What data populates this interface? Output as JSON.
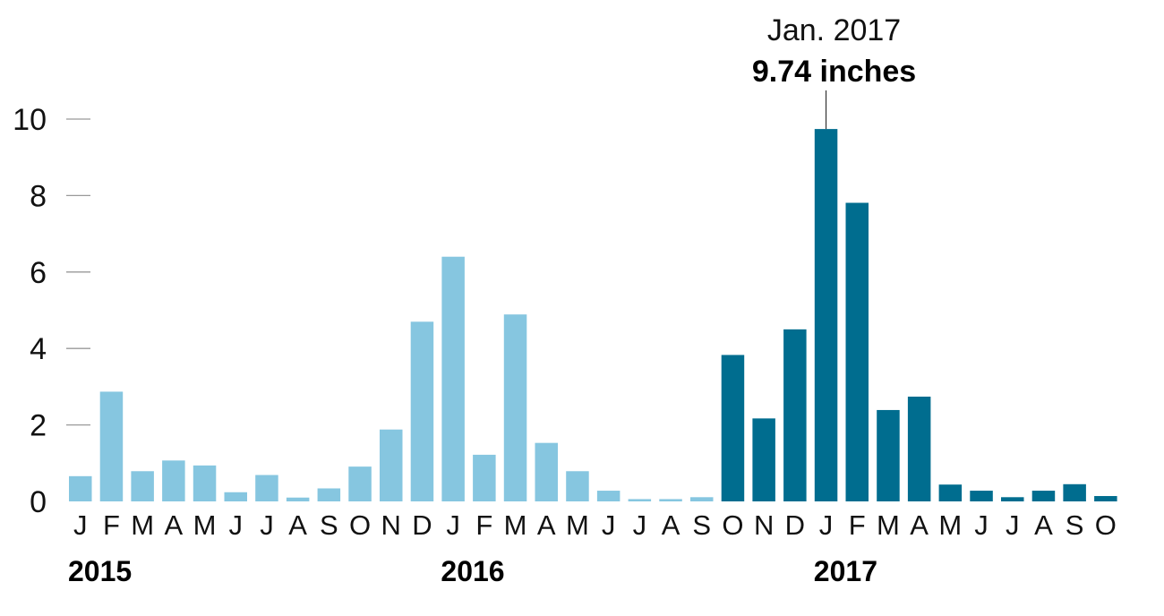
{
  "chart_data": {
    "type": "bar",
    "title": "",
    "xlabel": "",
    "ylabel": "",
    "ylim": [
      0,
      10.5
    ],
    "y_ticks": [
      "0",
      "2",
      "4",
      "6",
      "8",
      "10"
    ],
    "y_tick_values": [
      0,
      2,
      4,
      6,
      8,
      10
    ],
    "grid": false,
    "categories": [
      "J",
      "F",
      "M",
      "A",
      "M",
      "J",
      "J",
      "A",
      "S",
      "O",
      "N",
      "D",
      "J",
      "F",
      "M",
      "A",
      "M",
      "J",
      "J",
      "A",
      "S",
      "O",
      "N",
      "D",
      "J",
      "F",
      "M",
      "A",
      "M",
      "J",
      "J",
      "A",
      "S",
      "O"
    ],
    "values": [
      0.66,
      2.87,
      0.79,
      1.07,
      0.94,
      0.24,
      0.69,
      0.1,
      0.34,
      0.91,
      1.88,
      4.7,
      6.4,
      1.22,
      4.89,
      1.53,
      0.79,
      0.28,
      0.06,
      0.06,
      0.11,
      3.83,
      2.17,
      4.5,
      9.74,
      7.81,
      2.39,
      2.74,
      0.44,
      0.28,
      0.11,
      0.28,
      0.45,
      0.14
    ],
    "bar_colors": [
      "#86c6e0",
      "#86c6e0",
      "#86c6e0",
      "#86c6e0",
      "#86c6e0",
      "#86c6e0",
      "#86c6e0",
      "#86c6e0",
      "#86c6e0",
      "#86c6e0",
      "#86c6e0",
      "#86c6e0",
      "#86c6e0",
      "#86c6e0",
      "#86c6e0",
      "#86c6e0",
      "#86c6e0",
      "#86c6e0",
      "#86c6e0",
      "#86c6e0",
      "#86c6e0",
      "#006d8f",
      "#006d8f",
      "#006d8f",
      "#006d8f",
      "#006d8f",
      "#006d8f",
      "#006d8f",
      "#006d8f",
      "#006d8f",
      "#006d8f",
      "#006d8f",
      "#006d8f",
      "#006d8f"
    ],
    "colors": {
      "light_bar": "#86c6e0",
      "dark_bar": "#006d8f",
      "tick_mark": "#999999"
    },
    "years": [
      {
        "label": "2015",
        "start_index": 0
      },
      {
        "label": "2016",
        "start_index": 12
      },
      {
        "label": "2017",
        "start_index": 24
      }
    ],
    "annotation": {
      "index": 24,
      "date": "Jan. 2017",
      "value_text": "9.74 inches"
    }
  }
}
